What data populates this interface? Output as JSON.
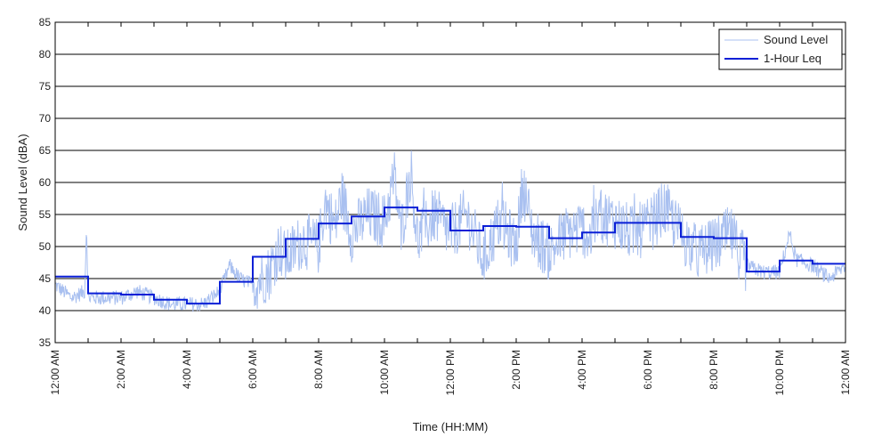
{
  "chart_data": {
    "type": "line",
    "xlabel": "Time (HH:MM)",
    "ylabel": "Sound Level (dBA)",
    "ylim": [
      35,
      85
    ],
    "xlim_hours": [
      0,
      24
    ],
    "grid": "horizontal",
    "legend_position": "top-right",
    "y_ticks": [
      "35",
      "40",
      "45",
      "50",
      "55",
      "60",
      "65",
      "70",
      "75",
      "80",
      "85"
    ],
    "x_ticks": [
      {
        "hour": 0,
        "label": "12:00 AM"
      },
      {
        "hour": 2,
        "label": "2:00 AM"
      },
      {
        "hour": 4,
        "label": "4:00 AM"
      },
      {
        "hour": 6,
        "label": "6:00 AM"
      },
      {
        "hour": 8,
        "label": "8:00 AM"
      },
      {
        "hour": 10,
        "label": "10:00 AM"
      },
      {
        "hour": 12,
        "label": "12:00 PM"
      },
      {
        "hour": 14,
        "label": "2:00 PM"
      },
      {
        "hour": 16,
        "label": "4:00 PM"
      },
      {
        "hour": 18,
        "label": "6:00 PM"
      },
      {
        "hour": 20,
        "label": "8:00 PM"
      },
      {
        "hour": 22,
        "label": "10:00 PM"
      },
      {
        "hour": 24,
        "label": "12:00 AM"
      }
    ],
    "series": [
      {
        "name": "Sound Level",
        "color": "#a9c0f0",
        "hours": [
          0,
          0.5,
          0.9,
          0.95,
          1,
          1.5,
          2,
          2.5,
          3,
          3.5,
          4,
          4.5,
          5,
          5.3,
          5.6,
          6,
          6.5,
          6.8,
          7,
          7.5,
          8,
          8.2,
          8.5,
          8.7,
          9,
          9.5,
          10,
          10.3,
          10.5,
          10.8,
          11,
          11.5,
          12,
          12.5,
          13,
          13.5,
          14,
          14.2,
          14.5,
          15,
          15.5,
          16,
          16.3,
          16.5,
          17,
          17.5,
          18,
          18.5,
          19,
          19.5,
          20,
          20.5,
          21,
          21.5,
          22,
          22.3,
          22.5,
          23,
          23.5,
          24
        ],
        "values": [
          44,
          42,
          43,
          54,
          42,
          42,
          42,
          43,
          42,
          41,
          41,
          41,
          43,
          47,
          45,
          44,
          46,
          50,
          48,
          51,
          50,
          57,
          53,
          58,
          52,
          55,
          54,
          61,
          52,
          62,
          51,
          55,
          52,
          55,
          48,
          54,
          50,
          60,
          52,
          49,
          52,
          53,
          51,
          55,
          54,
          52,
          53,
          56,
          52,
          49,
          50,
          52,
          47,
          46,
          46,
          52,
          48,
          47,
          45,
          47
        ]
      },
      {
        "name": "1-Hour Leq",
        "color": "#0a1fd6",
        "step_hours": [
          0,
          1,
          2,
          3,
          4,
          5,
          6,
          7,
          8,
          9,
          10,
          11,
          12,
          13,
          14,
          15,
          16,
          17,
          18,
          19,
          20,
          21,
          22,
          23
        ],
        "values": [
          45.3,
          42.7,
          42.5,
          41.7,
          41.1,
          44.5,
          48.4,
          51.2,
          53.6,
          54.7,
          56.1,
          55.6,
          52.5,
          53.2,
          53.1,
          51.3,
          52.2,
          53.7,
          53.7,
          51.5,
          51.3,
          46.1,
          47.8,
          47.3
        ]
      }
    ]
  }
}
